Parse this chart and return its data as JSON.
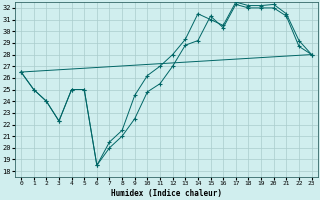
{
  "xlabel": "Humidex (Indice chaleur)",
  "xlim": [
    -0.5,
    23.5
  ],
  "ylim": [
    17.5,
    32.5
  ],
  "xticks": [
    0,
    1,
    2,
    3,
    4,
    5,
    6,
    7,
    8,
    9,
    10,
    11,
    12,
    13,
    14,
    15,
    16,
    17,
    18,
    19,
    20,
    21,
    22,
    23
  ],
  "yticks": [
    18,
    19,
    20,
    21,
    22,
    23,
    24,
    25,
    26,
    27,
    28,
    29,
    30,
    31,
    32
  ],
  "bg_color": "#d0eeee",
  "grid_color": "#aacccc",
  "line_color": "#006666",
  "line1_x": [
    0,
    1,
    2,
    3,
    4,
    5,
    6,
    7,
    8,
    9,
    10,
    11,
    12,
    13,
    14,
    15,
    16,
    17,
    18,
    19,
    20,
    21,
    22,
    23
  ],
  "line1_y": [
    26.5,
    25.0,
    24.0,
    22.3,
    25.0,
    25.0,
    18.5,
    20.0,
    21.0,
    22.5,
    24.8,
    25.5,
    27.0,
    28.8,
    29.2,
    31.3,
    30.3,
    32.3,
    32.0,
    32.0,
    32.0,
    31.3,
    28.7,
    28.0
  ],
  "line2_x": [
    0,
    1,
    2,
    3,
    4,
    5,
    6,
    7,
    8,
    9,
    10,
    11,
    12,
    13,
    14,
    15,
    16,
    17,
    18,
    19,
    20,
    21,
    22,
    23
  ],
  "line2_y": [
    26.5,
    25.0,
    24.0,
    22.3,
    25.0,
    25.0,
    18.5,
    20.5,
    21.5,
    24.5,
    26.2,
    27.0,
    28.0,
    29.3,
    31.5,
    31.0,
    30.5,
    32.5,
    32.2,
    32.2,
    32.3,
    31.5,
    29.2,
    28.0
  ],
  "line3_x": [
    0,
    23
  ],
  "line3_y": [
    26.5,
    28.0
  ]
}
